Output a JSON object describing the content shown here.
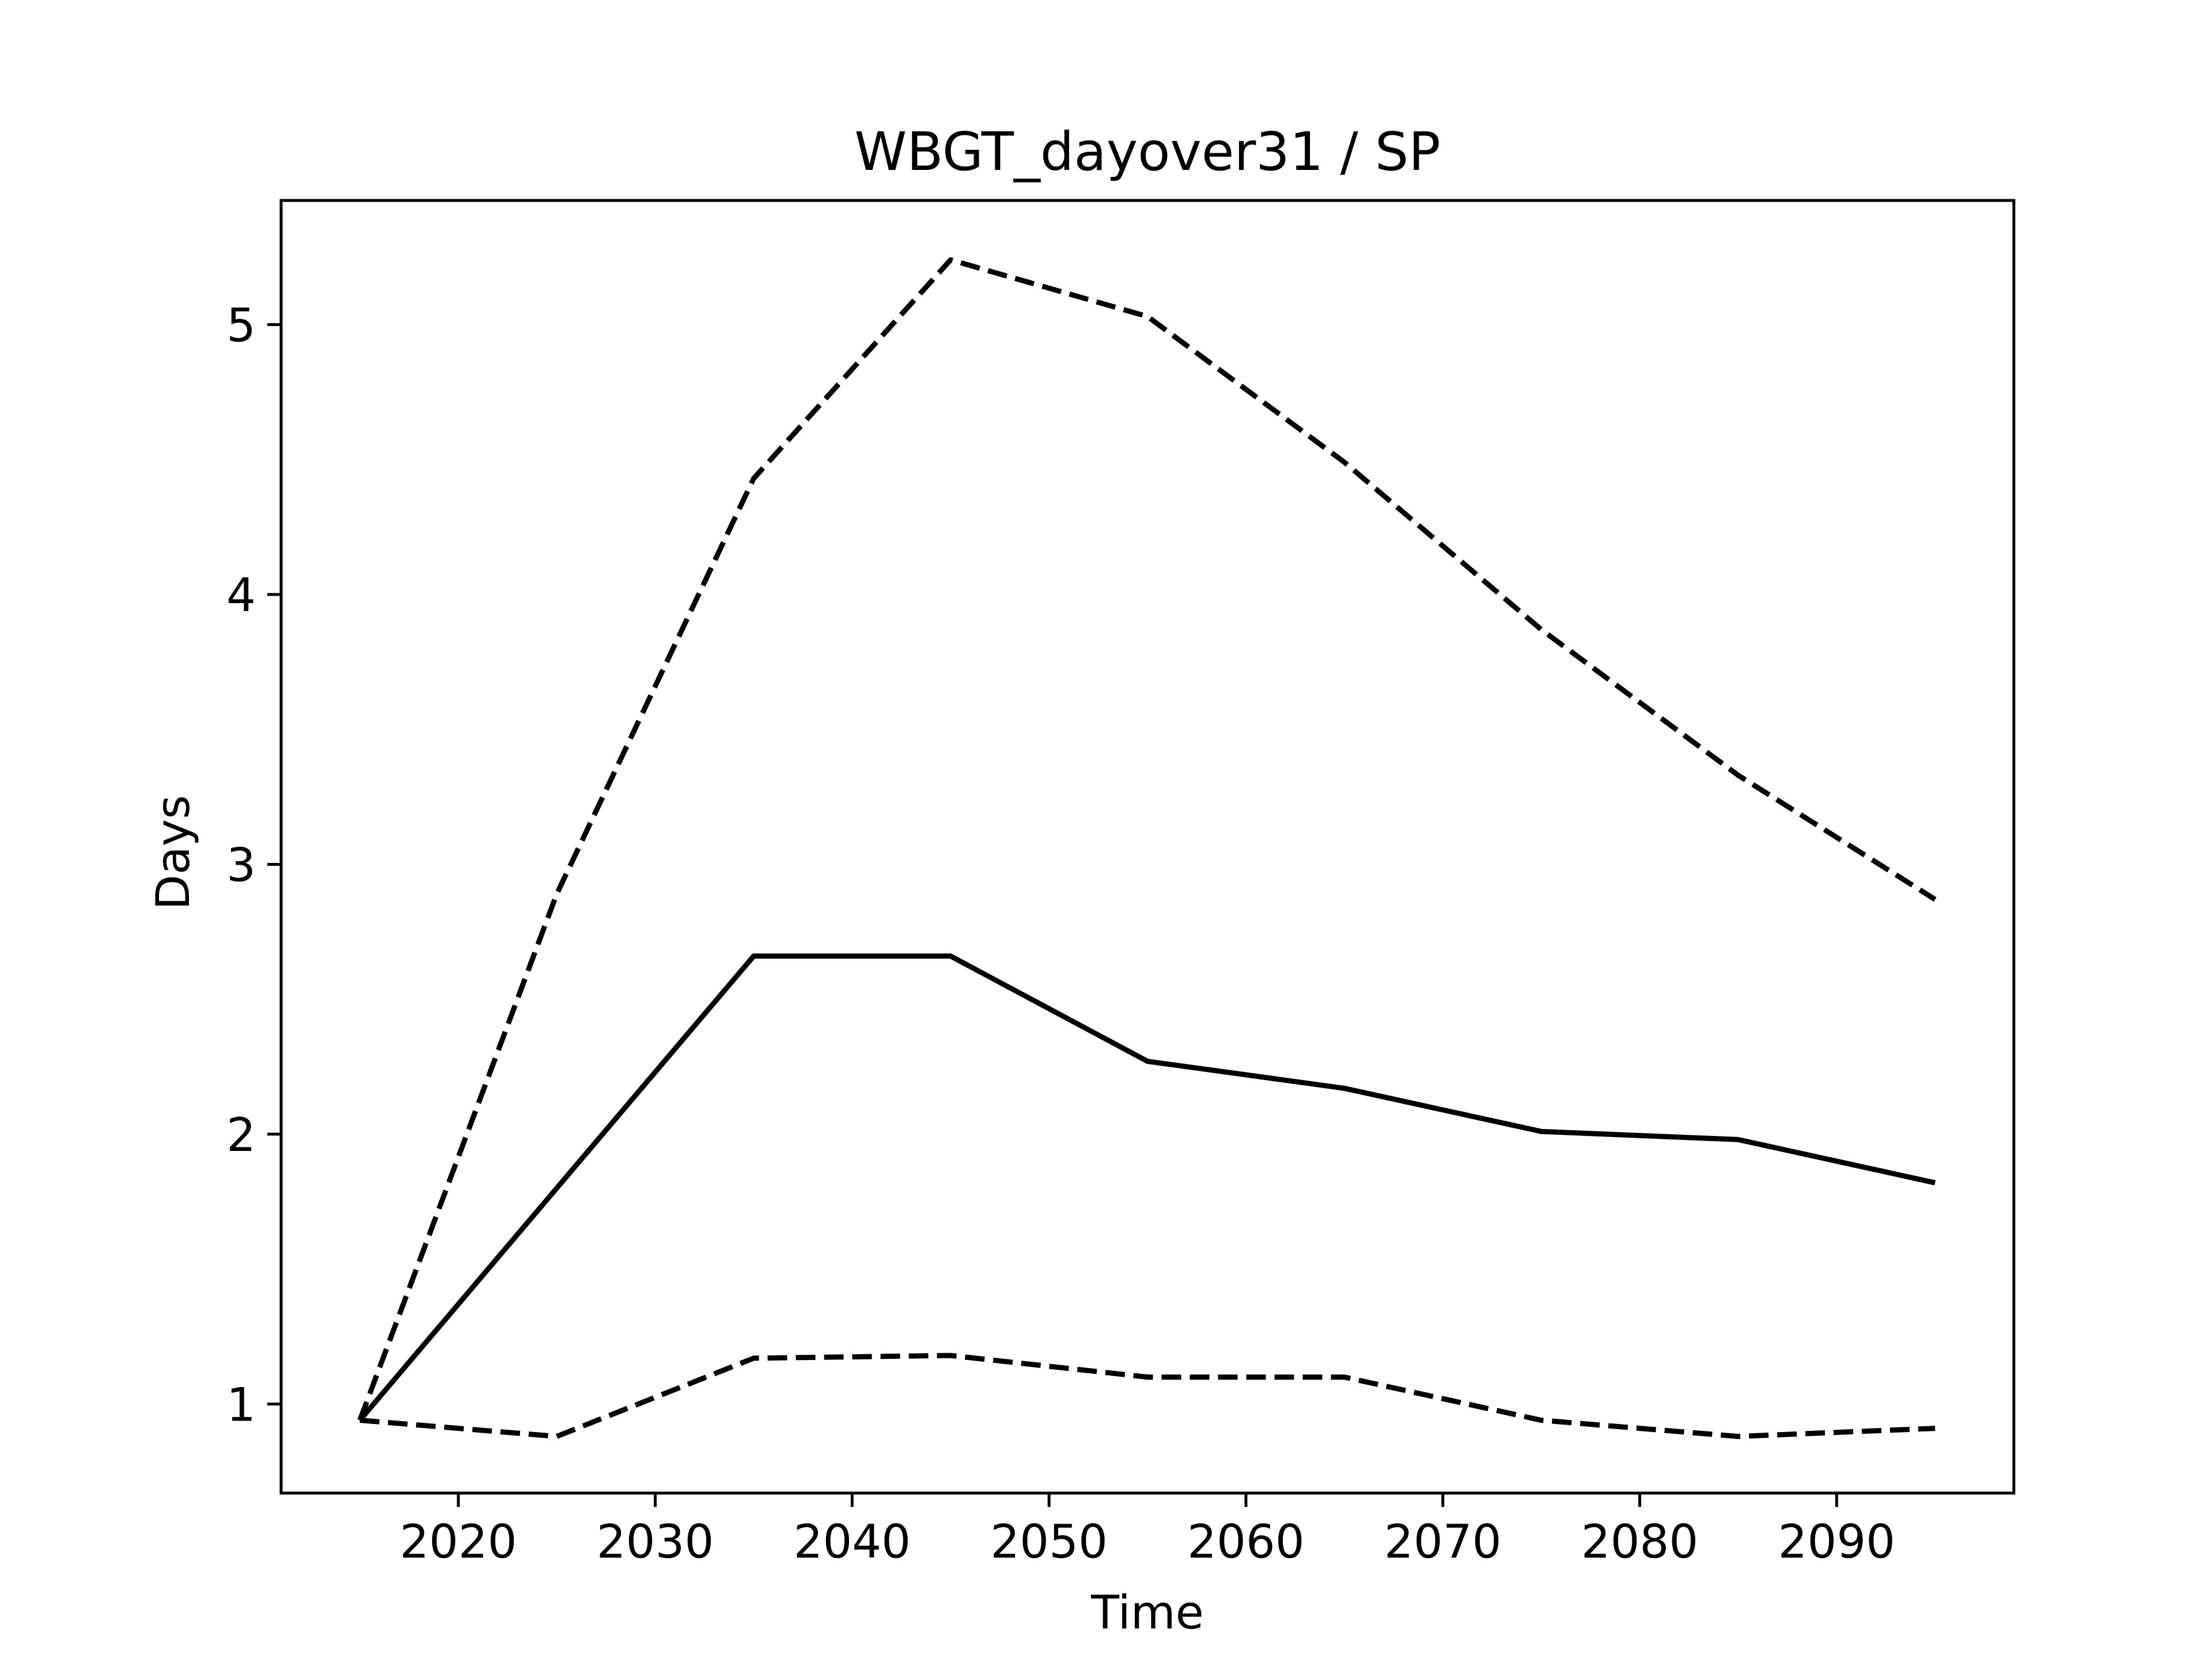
{
  "chart_data": {
    "type": "line",
    "title": "WBGT_dayover31 / SP",
    "xlabel": "Time",
    "ylabel": "Days",
    "xlim": [
      2011,
      2099
    ],
    "ylim": [
      0.67,
      5.46
    ],
    "xticks": [
      2020,
      2030,
      2040,
      2050,
      2060,
      2070,
      2080,
      2090
    ],
    "xtick_labels": [
      "2020",
      "2030",
      "2040",
      "2050",
      "2060",
      "2070",
      "2080",
      "2090"
    ],
    "yticks": [
      1,
      2,
      3,
      4,
      5
    ],
    "ytick_labels": [
      "1",
      "2",
      "3",
      "4",
      "5"
    ],
    "grid": false,
    "x": [
      2015,
      2025,
      2035,
      2045,
      2055,
      2065,
      2075,
      2085,
      2095
    ],
    "series": [
      {
        "style": "dashed",
        "color": "#000000",
        "values": [
          0.94,
          2.89,
          4.43,
          5.24,
          5.03,
          4.49,
          3.87,
          3.33,
          2.87
        ]
      },
      {
        "style": "solid",
        "color": "#000000",
        "values": [
          0.94,
          1.8,
          2.66,
          2.66,
          2.27,
          2.17,
          2.01,
          1.98,
          1.82
        ]
      },
      {
        "style": "dashed",
        "color": "#000000",
        "values": [
          0.94,
          0.88,
          1.17,
          1.18,
          1.1,
          1.1,
          0.94,
          0.88,
          0.91
        ]
      }
    ]
  }
}
